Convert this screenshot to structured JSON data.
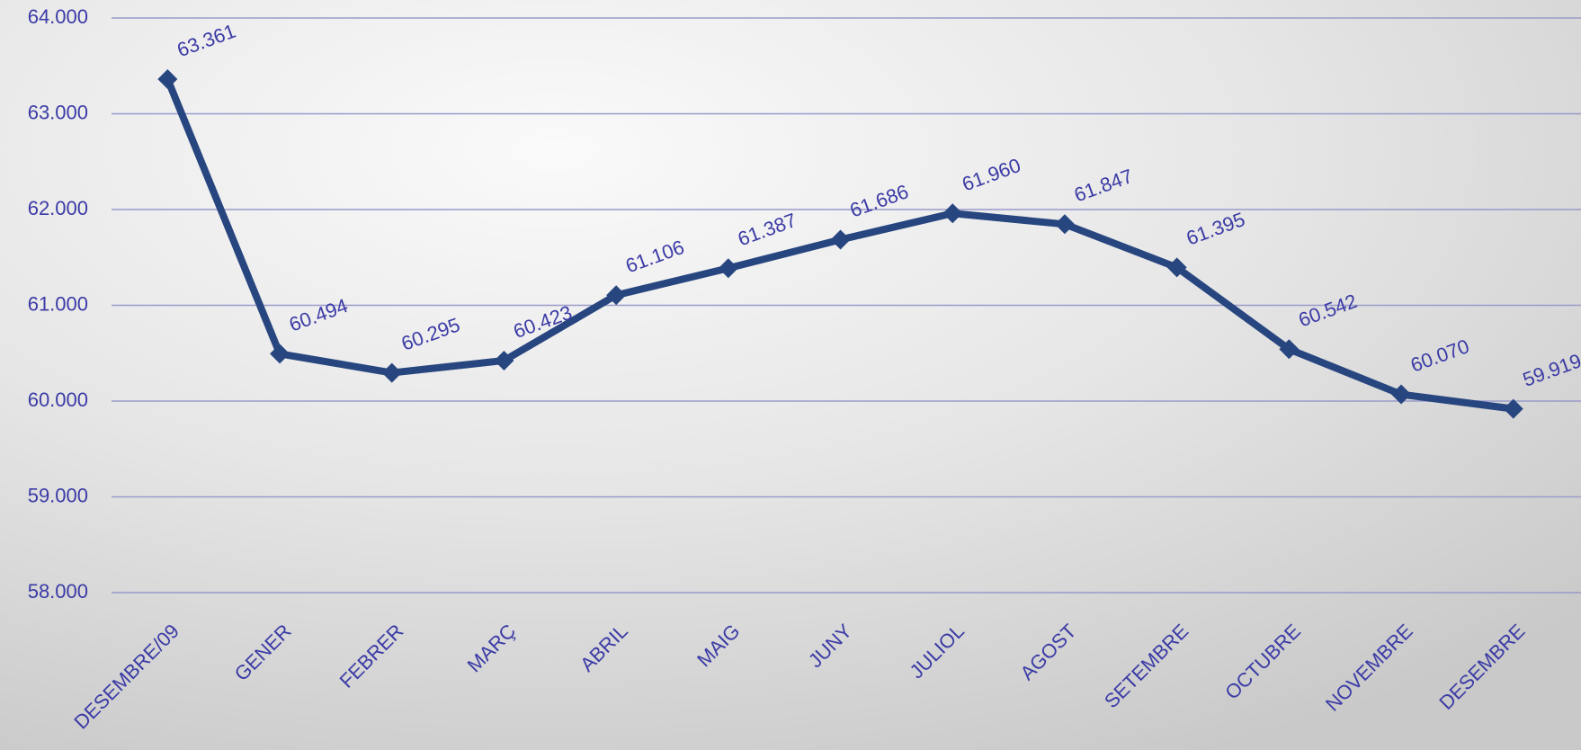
{
  "chart_data": {
    "type": "line",
    "categories": [
      "DESEMBRE/09",
      "GENER",
      "FEBRER",
      "MARÇ",
      "ABRIL",
      "MAIG",
      "JUNY",
      "JULIOL",
      "AGOST",
      "SETEMBRE",
      "OCTUBRE",
      "NOVEMBRE",
      "DESEMBRE"
    ],
    "values": [
      63361,
      60494,
      60295,
      60423,
      61106,
      61387,
      61686,
      61960,
      61847,
      61395,
      60542,
      60070,
      59919
    ],
    "value_labels": [
      "63.361",
      "60.494",
      "60.295",
      "60.423",
      "61.106",
      "61.387",
      "61.686",
      "61.960",
      "61.847",
      "61.395",
      "60.542",
      "60.070",
      "59.919"
    ],
    "color": "#27467f",
    "ylim": [
      58000,
      64000
    ],
    "yticks": [
      {
        "value": 58000,
        "label": "58.000"
      },
      {
        "value": 59000,
        "label": "59.000"
      },
      {
        "value": 60000,
        "label": "60.000"
      },
      {
        "value": 61000,
        "label": "61.000"
      },
      {
        "value": 62000,
        "label": "62.000"
      },
      {
        "value": 63000,
        "label": "63.000"
      },
      {
        "value": 64000,
        "label": "64.000"
      }
    ],
    "grid": true
  }
}
